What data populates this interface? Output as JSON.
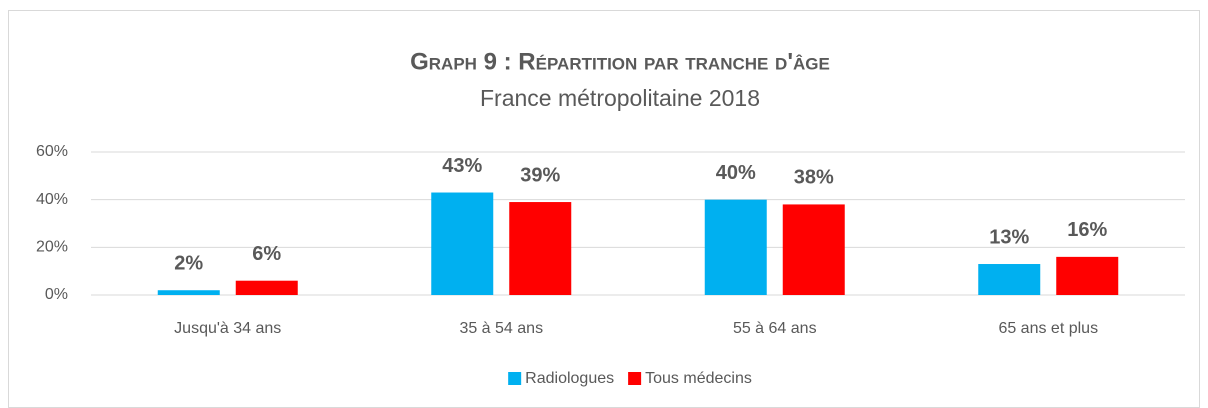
{
  "chart_data": {
    "type": "bar",
    "title": "Graph 9 : Répartition par tranche d'âge",
    "subtitle": "France métropolitaine 2018",
    "categories": [
      "Jusqu'à 34 ans",
      "35 à 54 ans",
      "55 à 64 ans",
      "65 ans et plus"
    ],
    "series": [
      {
        "name": "Radiologues",
        "color": "#00b0f0",
        "values": [
          2,
          43,
          40,
          13
        ],
        "value_labels": [
          "2%",
          "43%",
          "40%",
          "13%"
        ]
      },
      {
        "name": "Tous médecins",
        "color": "#ff0000",
        "values": [
          6,
          39,
          38,
          16
        ],
        "value_labels": [
          "6%",
          "39%",
          "38%",
          "16%"
        ]
      }
    ],
    "ylim": [
      0,
      60
    ],
    "yticks": [
      {
        "value": 0,
        "label": "0%"
      },
      {
        "value": 20,
        "label": "20%"
      },
      {
        "value": 40,
        "label": "40%"
      },
      {
        "value": 60,
        "label": "60%"
      }
    ],
    "grid": true,
    "legend": "bottom"
  }
}
